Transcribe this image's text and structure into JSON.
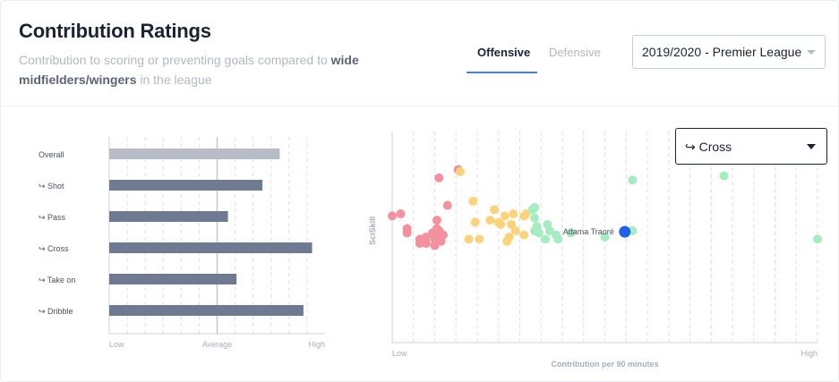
{
  "header": {
    "title": "Contribution Ratings",
    "subtitle_pre": "Contribution to scoring or preventing goals compared to",
    "subtitle_bold": "wide midfielders/wingers",
    "subtitle_post": " in the league"
  },
  "tabs": [
    {
      "label": "Offensive",
      "active": true
    },
    {
      "label": "Defensive",
      "active": false
    }
  ],
  "season_select": {
    "value": "2019/2020 - Premier League"
  },
  "metric_select": {
    "value": "↪ Cross"
  },
  "colors": {
    "overall_bar": "#b8bcc7",
    "metric_bar": "#6d7a91",
    "highlight": "#1f5fe8",
    "red": "#f4919f",
    "yellow": "#fdd37a",
    "green": "#a5ecc3"
  },
  "chart_data": [
    {
      "type": "bar",
      "orientation": "horizontal",
      "categories": [
        "Overall",
        "↪ Shot",
        "↪ Pass",
        "↪ Cross",
        "↪ Take on",
        "↪ Dribble"
      ],
      "values": [
        0.79,
        0.71,
        0.55,
        0.94,
        0.59,
        0.9
      ],
      "xlim": [
        0,
        1
      ],
      "tick_labels": {
        "low": "Low",
        "mid": "Average",
        "high": "High"
      },
      "grid": true
    },
    {
      "type": "scatter",
      "xlabel": "Contribution per 90 minutes",
      "ylabel": "SciSkill",
      "tick_labels": {
        "low": "Low",
        "high": "High"
      },
      "xlim": [
        0,
        1
      ],
      "ylim": [
        0,
        1
      ],
      "grid": true,
      "highlight": {
        "label": "Adama Traoré",
        "x": 0.547,
        "y": 0.525
      },
      "series": [
        {
          "color": "red",
          "points": [
            [
              0.0,
              0.6
            ],
            [
              0.02,
              0.61
            ],
            [
              0.035,
              0.54
            ],
            [
              0.035,
              0.52
            ],
            [
              0.065,
              0.49
            ],
            [
              0.065,
              0.47
            ],
            [
              0.08,
              0.5
            ],
            [
              0.08,
              0.47
            ],
            [
              0.095,
              0.52
            ],
            [
              0.1,
              0.49
            ],
            [
              0.1,
              0.46
            ],
            [
              0.105,
              0.58
            ],
            [
              0.11,
              0.51
            ],
            [
              0.115,
              0.48
            ],
            [
              0.105,
              0.54
            ],
            [
              0.11,
              0.53
            ],
            [
              0.12,
              0.51
            ],
            [
              0.13,
              0.65
            ],
            [
              0.155,
              0.82
            ],
            [
              0.11,
              0.78
            ]
          ]
        },
        {
          "color": "yellow",
          "points": [
            [
              0.16,
              0.81
            ],
            [
              0.19,
              0.67
            ],
            [
              0.195,
              0.57
            ],
            [
              0.23,
              0.58
            ],
            [
              0.25,
              0.57
            ],
            [
              0.265,
              0.6
            ],
            [
              0.24,
              0.63
            ],
            [
              0.255,
              0.56
            ],
            [
              0.28,
              0.56
            ],
            [
              0.285,
              0.61
            ],
            [
              0.29,
              0.53
            ],
            [
              0.31,
              0.6
            ],
            [
              0.31,
              0.51
            ],
            [
              0.315,
              0.61
            ],
            [
              0.27,
              0.48
            ],
            [
              0.275,
              0.5
            ],
            [
              0.18,
              0.49
            ],
            [
              0.205,
              0.49
            ]
          ]
        },
        {
          "color": "green",
          "points": [
            [
              0.33,
              0.63
            ],
            [
              0.335,
              0.64
            ],
            [
              0.335,
              0.59
            ],
            [
              0.34,
              0.55
            ],
            [
              0.335,
              0.53
            ],
            [
              0.345,
              0.52
            ],
            [
              0.365,
              0.56
            ],
            [
              0.37,
              0.53
            ],
            [
              0.36,
              0.49
            ],
            [
              0.39,
              0.49
            ],
            [
              0.385,
              0.51
            ],
            [
              0.42,
              0.52
            ],
            [
              0.5,
              0.5
            ],
            [
              0.565,
              0.53
            ],
            [
              0.565,
              0.77
            ],
            [
              0.78,
              0.79
            ],
            [
              1.0,
              0.49
            ]
          ]
        }
      ]
    }
  ]
}
